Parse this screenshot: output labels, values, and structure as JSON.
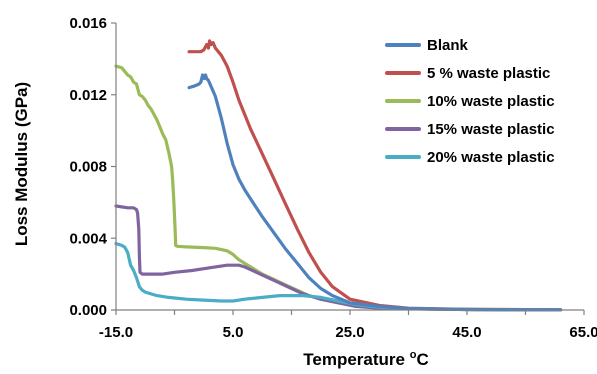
{
  "chart_data": {
    "type": "line",
    "title": "",
    "xlabel_main": "Temperature ",
    "xlabel_sup": "o",
    "xlabel_tail": "C",
    "ylabel": "Loss Modulus (GPa)",
    "xlim": [
      -15,
      65
    ],
    "ylim": [
      0,
      0.016
    ],
    "x_ticks": [
      -15,
      5,
      25,
      45,
      65
    ],
    "x_tick_labels": [
      "-15.0",
      "5.0",
      "25.0",
      "45.0",
      "65.0"
    ],
    "y_ticks": [
      0,
      0.004,
      0.008,
      0.012,
      0.016
    ],
    "y_tick_labels": [
      "0.000",
      "0.004",
      "0.008",
      "0.012",
      "0.016"
    ],
    "grid": false,
    "legend_position": "top-right",
    "series": [
      {
        "name": "Blank",
        "color": "#4F81BD",
        "points": [
          [
            -2.5,
            0.0124
          ],
          [
            -1.5,
            0.0125
          ],
          [
            -0.8,
            0.0126
          ],
          [
            -0.5,
            0.0127
          ],
          [
            -0.2,
            0.0131
          ],
          [
            0.1,
            0.0129
          ],
          [
            0.3,
            0.0131
          ],
          [
            0.5,
            0.0129
          ],
          [
            0.8,
            0.0128
          ],
          [
            1.2,
            0.0125
          ],
          [
            2,
            0.0119
          ],
          [
            3,
            0.0107
          ],
          [
            4,
            0.0093
          ],
          [
            5,
            0.0081
          ],
          [
            6,
            0.0073
          ],
          [
            7,
            0.0067
          ],
          [
            8,
            0.0062
          ],
          [
            9,
            0.0057
          ],
          [
            10,
            0.0052
          ],
          [
            12,
            0.0043
          ],
          [
            14,
            0.0034
          ],
          [
            16,
            0.0026
          ],
          [
            18,
            0.0018
          ],
          [
            20,
            0.0012
          ],
          [
            22,
            0.0008
          ],
          [
            25,
            0.0004
          ],
          [
            30,
            0.0002
          ],
          [
            35,
            8e-05
          ],
          [
            45,
            3e-05
          ],
          [
            55,
            1e-05
          ],
          [
            61,
            1e-05
          ]
        ]
      },
      {
        "name": "5 % waste plastic",
        "color": "#C0504D",
        "points": [
          [
            -2.5,
            0.0144
          ],
          [
            -1.5,
            0.0144
          ],
          [
            -0.5,
            0.0144
          ],
          [
            0,
            0.0145
          ],
          [
            0.5,
            0.0148
          ],
          [
            0.8,
            0.0146
          ],
          [
            1,
            0.015
          ],
          [
            1.3,
            0.0148
          ],
          [
            1.6,
            0.0149
          ],
          [
            2,
            0.0146
          ],
          [
            3,
            0.0142
          ],
          [
            4,
            0.0136
          ],
          [
            5,
            0.0127
          ],
          [
            6,
            0.0117
          ],
          [
            8,
            0.0101
          ],
          [
            10,
            0.0087
          ],
          [
            12,
            0.0073
          ],
          [
            14,
            0.0059
          ],
          [
            16,
            0.0045
          ],
          [
            18,
            0.0032
          ],
          [
            20,
            0.0021
          ],
          [
            22,
            0.0013
          ],
          [
            25,
            0.0006
          ],
          [
            30,
            0.00025
          ],
          [
            35,
            0.0001
          ],
          [
            45,
            4e-05
          ],
          [
            55,
            2e-05
          ],
          [
            61,
            1e-05
          ]
        ]
      },
      {
        "name": "10% waste plastic",
        "color": "#9BBB59",
        "points": [
          [
            -15,
            0.0136
          ],
          [
            -14,
            0.0135
          ],
          [
            -13,
            0.0131
          ],
          [
            -12.5,
            0.013
          ],
          [
            -12,
            0.0127
          ],
          [
            -11.5,
            0.0126
          ],
          [
            -11,
            0.012
          ],
          [
            -10.5,
            0.0119
          ],
          [
            -10,
            0.0117
          ],
          [
            -9.5,
            0.0114
          ],
          [
            -9,
            0.0112
          ],
          [
            -8.5,
            0.0109
          ],
          [
            -8,
            0.0106
          ],
          [
            -7.5,
            0.0102
          ],
          [
            -7,
            0.0098
          ],
          [
            -6.5,
            0.0095
          ],
          [
            -6,
            0.0088
          ],
          [
            -5.5,
            0.008
          ],
          [
            -5.3,
            0.0072
          ],
          [
            -5.1,
            0.006
          ],
          [
            -4.9,
            0.0045
          ],
          [
            -4.8,
            0.0036
          ],
          [
            -4.5,
            0.00355
          ],
          [
            -3,
            0.00352
          ],
          [
            0,
            0.00348
          ],
          [
            2,
            0.00344
          ],
          [
            4,
            0.0033
          ],
          [
            5,
            0.0031
          ],
          [
            6,
            0.0028
          ],
          [
            8,
            0.0024
          ],
          [
            10,
            0.002
          ],
          [
            12,
            0.0017
          ],
          [
            14,
            0.0014
          ],
          [
            16,
            0.0011
          ],
          [
            18,
            0.0008
          ],
          [
            20,
            0.0006
          ],
          [
            23,
            0.0004
          ],
          [
            26,
            0.00025
          ],
          [
            30,
            0.00013
          ],
          [
            35,
            7e-05
          ],
          [
            45,
            3e-05
          ],
          [
            55,
            1e-05
          ],
          [
            61,
            1e-05
          ]
        ]
      },
      {
        "name": "15% waste plastic",
        "color": "#8064A2",
        "points": [
          [
            -15,
            0.0058
          ],
          [
            -13,
            0.0057
          ],
          [
            -12,
            0.0057
          ],
          [
            -11.5,
            0.0056
          ],
          [
            -11.3,
            0.0054
          ],
          [
            -11.1,
            0.0045
          ],
          [
            -11,
            0.003
          ],
          [
            -10.9,
            0.0021
          ],
          [
            -10.5,
            0.002
          ],
          [
            -9,
            0.002
          ],
          [
            -7,
            0.002
          ],
          [
            -5,
            0.0021
          ],
          [
            -2,
            0.0022
          ],
          [
            0,
            0.0023
          ],
          [
            2,
            0.0024
          ],
          [
            4,
            0.0025
          ],
          [
            5,
            0.0025
          ],
          [
            6,
            0.0025
          ],
          [
            7,
            0.0024
          ],
          [
            9,
            0.0021
          ],
          [
            11,
            0.0018
          ],
          [
            13,
            0.0015
          ],
          [
            15,
            0.0012
          ],
          [
            17,
            0.0009
          ],
          [
            20,
            0.0006
          ],
          [
            23,
            0.0004
          ],
          [
            26,
            0.0002
          ],
          [
            30,
            0.0001
          ],
          [
            40,
            4e-05
          ],
          [
            50,
            2e-05
          ],
          [
            61,
            1e-05
          ]
        ]
      },
      {
        "name": "20% waste plastic",
        "color": "#4BACC6",
        "points": [
          [
            -15,
            0.0037
          ],
          [
            -14,
            0.0036
          ],
          [
            -13.5,
            0.0035
          ],
          [
            -13,
            0.0032
          ],
          [
            -12.5,
            0.0025
          ],
          [
            -12,
            0.0022
          ],
          [
            -11.5,
            0.0018
          ],
          [
            -11,
            0.0013
          ],
          [
            -10.5,
            0.0011
          ],
          [
            -10,
            0.001
          ],
          [
            -9,
            0.0009
          ],
          [
            -8,
            0.0008
          ],
          [
            -6,
            0.0007
          ],
          [
            -3,
            0.0006
          ],
          [
            0,
            0.00055
          ],
          [
            3,
            0.0005
          ],
          [
            5,
            0.0005
          ],
          [
            7,
            0.0006
          ],
          [
            10,
            0.0007
          ],
          [
            13,
            0.0008
          ],
          [
            15,
            0.0008
          ],
          [
            17,
            0.0008
          ],
          [
            20,
            0.0007
          ],
          [
            23,
            0.0005
          ],
          [
            26,
            0.0003
          ],
          [
            30,
            0.00015
          ],
          [
            35,
            7e-05
          ],
          [
            45,
            3e-05
          ],
          [
            55,
            1e-05
          ],
          [
            61,
            1e-05
          ]
        ]
      }
    ]
  }
}
